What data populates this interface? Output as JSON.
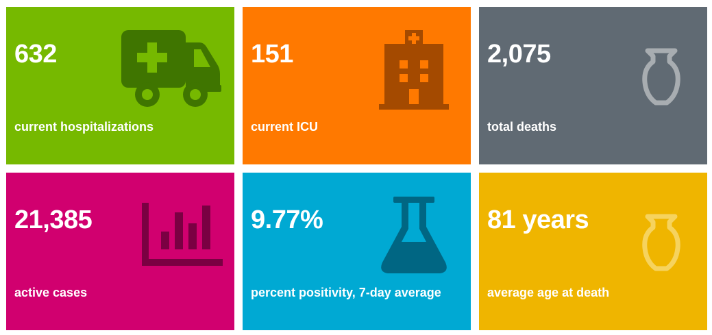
{
  "stats": [
    {
      "value": "632",
      "label": "current hospitalizations",
      "color": "#76b900",
      "icon": "ambulance-icon"
    },
    {
      "value": "151",
      "label": "current ICU",
      "color": "#ff7900",
      "icon": "hospital-icon"
    },
    {
      "value": "2,075",
      "label": "total deaths",
      "color": "#606a73",
      "icon": "urn-icon"
    },
    {
      "value": "21,385",
      "label": "active cases",
      "color": "#d1006f",
      "icon": "bar-chart-icon"
    },
    {
      "value": "9.77%",
      "label": "percent positivity, 7-day average",
      "color": "#00a9d3",
      "icon": "flask-icon"
    },
    {
      "value": "81 years",
      "label": "average age at death",
      "color": "#efb500",
      "icon": "urn-icon"
    }
  ]
}
